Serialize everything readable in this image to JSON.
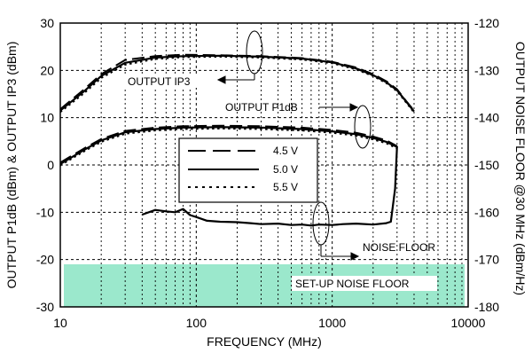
{
  "chart_data": {
    "type": "line",
    "x_scale": "log",
    "xlabel": "FREQUENCY (MHz)",
    "ylabel_left": "OUTPUT P1dB (dBm) & OUTPUT IP3 (dBm)",
    "ylabel_right": "OUTPUT NOISE FLOOR @30 MHz (dBm/Hz)",
    "xlim": [
      10,
      10000
    ],
    "ylim_left": [
      -30,
      30
    ],
    "ylim_right": [
      -180,
      -120
    ],
    "x_ticks": [
      {
        "value": 10,
        "label": "10"
      },
      {
        "value": 100,
        "label": "100"
      },
      {
        "value": 1000,
        "label": "1000"
      },
      {
        "value": 10000,
        "label": "10000"
      }
    ],
    "y_ticks_left": [
      {
        "value": 30,
        "label": "30"
      },
      {
        "value": 20,
        "label": "20"
      },
      {
        "value": 10,
        "label": "10"
      },
      {
        "value": 0,
        "label": "0"
      },
      {
        "value": -10,
        "label": "-10"
      },
      {
        "value": -20,
        "label": "-20"
      },
      {
        "value": -30,
        "label": "-30"
      }
    ],
    "y_ticks_right": [
      {
        "value": -120,
        "label": "-120"
      },
      {
        "value": -130,
        "label": "-130"
      },
      {
        "value": -140,
        "label": "-140"
      },
      {
        "value": -150,
        "label": "-150"
      },
      {
        "value": -160,
        "label": "-160"
      },
      {
        "value": -170,
        "label": "-170"
      },
      {
        "value": -180,
        "label": "-180"
      }
    ],
    "grid": true,
    "legend": {
      "placement": "center",
      "entries": [
        {
          "label": "4.5 V",
          "style": "long-dash"
        },
        {
          "label": "5.0 V",
          "style": "solid"
        },
        {
          "label": "5.5 V",
          "style": "dotted"
        }
      ]
    },
    "annotations": [
      {
        "text": "OUTPUT IP3"
      },
      {
        "text": "OUTPUT P1dB"
      },
      {
        "text": "NOISE FLOOR"
      },
      {
        "text": "SET-UP NOISE FLOOR"
      }
    ],
    "setup_noise_floor": {
      "axis": "right",
      "x": [
        10,
        10000
      ],
      "y_top": -171,
      "y_bottom": -180,
      "color": "#9be8cc"
    },
    "series": [
      {
        "group": "OUTPUT IP3",
        "axis": "left",
        "style": "long-dash",
        "voltage": "4.5 V",
        "x": [
          10,
          15,
          20,
          30,
          50,
          80,
          150,
          300,
          600,
          1000,
          1500,
          2000,
          2500,
          3000,
          3500,
          4000
        ],
        "y": [
          11.8,
          16.0,
          19.2,
          22.2,
          23.0,
          23.3,
          23.2,
          23.0,
          22.6,
          21.8,
          20.6,
          19.2,
          17.7,
          16.0,
          13.5,
          11.5
        ]
      },
      {
        "group": "OUTPUT IP3",
        "axis": "left",
        "style": "solid",
        "voltage": "5.0 V",
        "x": [
          10,
          15,
          20,
          30,
          50,
          80,
          150,
          300,
          600,
          1000,
          1500,
          2000,
          2500,
          3000,
          3500,
          4000
        ],
        "y": [
          11.5,
          15.6,
          18.8,
          21.6,
          22.7,
          23.0,
          23.1,
          22.9,
          22.5,
          21.7,
          20.4,
          19.0,
          17.5,
          15.8,
          13.4,
          11.3
        ]
      },
      {
        "group": "OUTPUT IP3",
        "axis": "left",
        "style": "dotted",
        "voltage": "5.5 V",
        "x": [
          10,
          15,
          20,
          30,
          50,
          80,
          150,
          300,
          600,
          1000,
          1500,
          2000,
          2500,
          3000,
          3500,
          4000
        ],
        "y": [
          11.2,
          15.2,
          18.4,
          21.2,
          22.4,
          22.8,
          22.9,
          22.7,
          22.3,
          21.5,
          20.2,
          18.8,
          17.3,
          15.6,
          13.2,
          11.1
        ]
      },
      {
        "group": "OUTPUT P1dB",
        "axis": "left",
        "style": "long-dash",
        "voltage": "4.5 V",
        "x": [
          10,
          15,
          20,
          30,
          50,
          80,
          150,
          300,
          600,
          1000,
          1500,
          2000,
          2500,
          3000
        ],
        "y": [
          0.5,
          3.5,
          5.5,
          7.2,
          7.9,
          8.2,
          8.3,
          8.2,
          7.9,
          7.4,
          6.8,
          6.0,
          5.2,
          4.0
        ]
      },
      {
        "group": "OUTPUT P1dB",
        "axis": "left",
        "style": "solid",
        "voltage": "5.0 V",
        "x": [
          10,
          15,
          20,
          30,
          50,
          80,
          150,
          300,
          600,
          1000,
          1500,
          2000,
          2500,
          3000
        ],
        "y": [
          0.2,
          3.2,
          5.2,
          6.9,
          7.6,
          7.9,
          8.0,
          7.9,
          7.6,
          7.1,
          6.5,
          5.7,
          4.9,
          3.8
        ]
      },
      {
        "group": "OUTPUT P1dB",
        "axis": "left",
        "style": "dotted",
        "voltage": "5.5 V",
        "x": [
          10,
          15,
          20,
          30,
          50,
          80,
          150,
          300,
          600,
          1000,
          1500,
          2000,
          2500,
          3000
        ],
        "y": [
          -0.1,
          2.9,
          4.9,
          6.6,
          7.3,
          7.6,
          7.7,
          7.6,
          7.3,
          6.8,
          6.2,
          5.4,
          4.6,
          3.5
        ]
      },
      {
        "group": "NOISE FLOOR",
        "axis": "right",
        "style": "solid",
        "voltage": "5.0 V",
        "x": [
          40,
          50,
          60,
          70,
          80,
          90,
          100,
          120,
          150,
          200,
          250,
          300,
          400,
          500,
          600,
          700,
          800,
          1000,
          1200,
          1500,
          2000,
          2500,
          2700,
          2900,
          3000
        ],
        "y": [
          -160.5,
          -159.5,
          -159.8,
          -160.0,
          -159.3,
          -160.6,
          -161.0,
          -161.8,
          -162.0,
          -162.1,
          -162.3,
          -162.5,
          -162.4,
          -162.7,
          -162.6,
          -162.8,
          -162.6,
          -162.7,
          -162.5,
          -162.4,
          -162.6,
          -162.3,
          -162.0,
          -155.0,
          -146.0
        ]
      }
    ]
  }
}
